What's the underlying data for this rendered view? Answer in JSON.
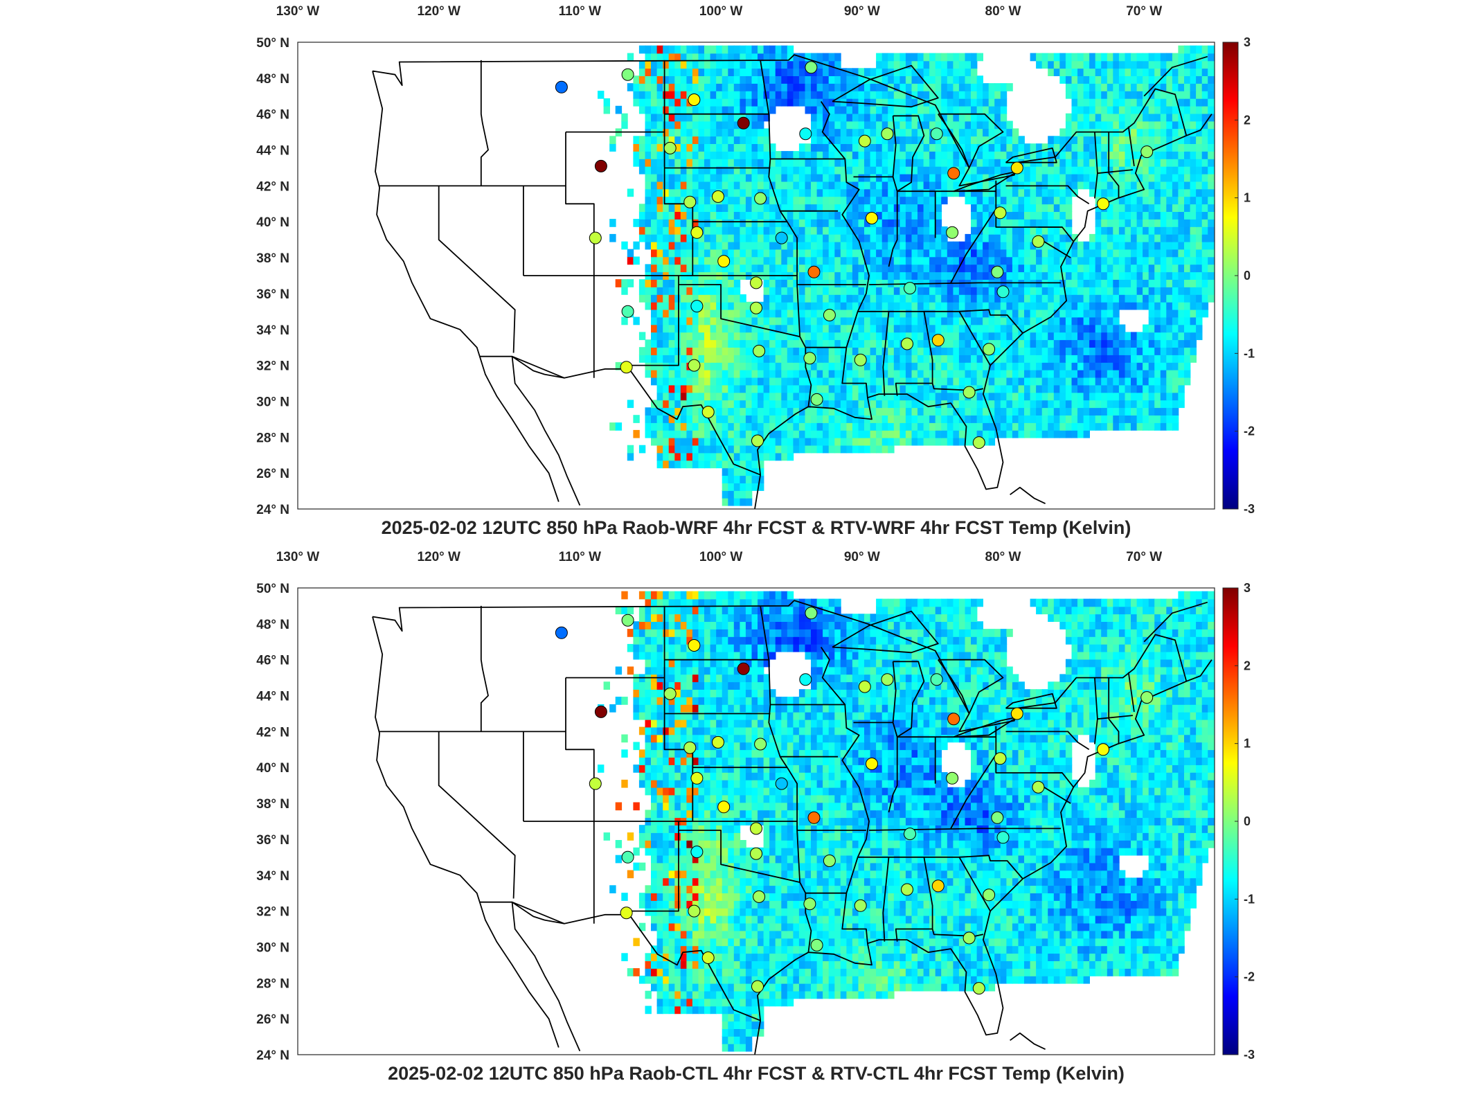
{
  "panels": [
    {
      "title": "2025-02-02 12UTC 850 hPa Raob-WRF 4hr FCST & RTV-WRF 4hr FCST Temp (Kelvin)",
      "lon_ticks": [
        "130° W",
        "120° W",
        "110° W",
        "100° W",
        "90° W",
        "80° W",
        "70° W"
      ],
      "lat_ticks": [
        "50° N",
        "48° N",
        "46° N",
        "44° N",
        "42° N",
        "40° N",
        "38° N",
        "36° N",
        "34° N",
        "32° N",
        "30° N",
        "28° N",
        "26° N",
        "24° N"
      ],
      "colorbar_ticks": [
        "3",
        "2",
        "1",
        "0",
        "-1",
        "-2",
        "-3"
      ]
    },
    {
      "title": "2025-02-02 12UTC 850 hPa Raob-CTL 4hr FCST & RTV-CTL 4hr FCST Temp (Kelvin)",
      "lon_ticks": [
        "130° W",
        "120° W",
        "110° W",
        "100° W",
        "90° W",
        "80° W",
        "70° W"
      ],
      "lat_ticks": [
        "50° N",
        "48° N",
        "46° N",
        "44° N",
        "42° N",
        "40° N",
        "38° N",
        "36° N",
        "34° N",
        "32° N",
        "30° N",
        "28° N",
        "26° N",
        "24° N"
      ],
      "colorbar_ticks": [
        "3",
        "2",
        "1",
        "0",
        "-1",
        "-2",
        "-3"
      ]
    }
  ],
  "chart_data": {
    "type": "scatter",
    "colormap": "jet",
    "color_range": [
      -3,
      3
    ],
    "lon_range": [
      -130,
      -65
    ],
    "lat_range": [
      24,
      50
    ],
    "stations": [
      {
        "lon": -111.3,
        "lat": 47.5,
        "v_wrf": -1.6,
        "v_ctl": -1.6
      },
      {
        "lon": -106.6,
        "lat": 48.2,
        "v_wrf": 0.0,
        "v_ctl": 0.0
      },
      {
        "lon": -101.9,
        "lat": 46.8,
        "v_wrf": 0.8,
        "v_ctl": 0.8
      },
      {
        "lon": -98.4,
        "lat": 45.5,
        "v_wrf": 3.0,
        "v_ctl": 2.9
      },
      {
        "lon": -93.6,
        "lat": 48.6,
        "v_wrf": 0.0,
        "v_ctl": 0.0
      },
      {
        "lon": -94.0,
        "lat": 44.9,
        "v_wrf": -0.7,
        "v_ctl": -0.7
      },
      {
        "lon": -108.5,
        "lat": 43.1,
        "v_wrf": 3.0,
        "v_ctl": 3.0
      },
      {
        "lon": -103.6,
        "lat": 44.1,
        "v_wrf": 0.2,
        "v_ctl": 0.2
      },
      {
        "lon": -102.2,
        "lat": 41.1,
        "v_wrf": 0.3,
        "v_ctl": 0.3
      },
      {
        "lon": -100.2,
        "lat": 41.4,
        "v_wrf": 0.5,
        "v_ctl": 0.5
      },
      {
        "lon": -97.2,
        "lat": 41.3,
        "v_wrf": 0.1,
        "v_ctl": 0.1
      },
      {
        "lon": -108.9,
        "lat": 39.1,
        "v_wrf": 0.4,
        "v_ctl": 0.4
      },
      {
        "lon": -101.7,
        "lat": 39.4,
        "v_wrf": 0.6,
        "v_ctl": 0.6
      },
      {
        "lon": -99.8,
        "lat": 37.8,
        "v_wrf": 0.8,
        "v_ctl": 0.8
      },
      {
        "lon": -95.7,
        "lat": 39.1,
        "v_wrf": -1.1,
        "v_ctl": -1.1
      },
      {
        "lon": -93.4,
        "lat": 37.2,
        "v_wrf": 1.6,
        "v_ctl": 1.6
      },
      {
        "lon": -97.5,
        "lat": 36.6,
        "v_wrf": 0.4,
        "v_ctl": 0.4
      },
      {
        "lon": -101.7,
        "lat": 35.3,
        "v_wrf": -0.7,
        "v_ctl": -0.7
      },
      {
        "lon": -106.6,
        "lat": 35.0,
        "v_wrf": -0.3,
        "v_ctl": -0.3
      },
      {
        "lon": -97.5,
        "lat": 35.2,
        "v_wrf": 0.3,
        "v_ctl": 0.3
      },
      {
        "lon": -92.3,
        "lat": 34.8,
        "v_wrf": 0.1,
        "v_ctl": 0.1
      },
      {
        "lon": -106.7,
        "lat": 31.9,
        "v_wrf": 0.6,
        "v_ctl": 0.6
      },
      {
        "lon": -101.9,
        "lat": 32.0,
        "v_wrf": 0.3,
        "v_ctl": 0.3
      },
      {
        "lon": -97.3,
        "lat": 32.8,
        "v_wrf": 0.2,
        "v_ctl": 0.2
      },
      {
        "lon": -93.7,
        "lat": 32.4,
        "v_wrf": 0.1,
        "v_ctl": 0.1
      },
      {
        "lon": -90.1,
        "lat": 32.3,
        "v_wrf": 0.2,
        "v_ctl": 0.2
      },
      {
        "lon": -86.8,
        "lat": 33.2,
        "v_wrf": 0.3,
        "v_ctl": 0.3
      },
      {
        "lon": -84.6,
        "lat": 33.4,
        "v_wrf": 1.0,
        "v_ctl": 1.0
      },
      {
        "lon": -81.0,
        "lat": 32.9,
        "v_wrf": 0.1,
        "v_ctl": 0.1
      },
      {
        "lon": -97.4,
        "lat": 27.8,
        "v_wrf": 0.3,
        "v_ctl": 0.3
      },
      {
        "lon": -93.2,
        "lat": 30.1,
        "v_wrf": 0.0,
        "v_ctl": 0.0
      },
      {
        "lon": -82.4,
        "lat": 30.5,
        "v_wrf": 0.2,
        "v_ctl": 0.2
      },
      {
        "lon": -81.7,
        "lat": 27.7,
        "v_wrf": 0.3,
        "v_ctl": 0.3
      },
      {
        "lon": -100.9,
        "lat": 29.4,
        "v_wrf": 0.5,
        "v_ctl": 0.5
      },
      {
        "lon": -89.8,
        "lat": 44.5,
        "v_wrf": 0.4,
        "v_ctl": 0.4
      },
      {
        "lon": -88.2,
        "lat": 44.9,
        "v_wrf": 0.2,
        "v_ctl": 0.2
      },
      {
        "lon": -84.7,
        "lat": 44.9,
        "v_wrf": -0.3,
        "v_ctl": -0.3
      },
      {
        "lon": -83.5,
        "lat": 42.7,
        "v_wrf": 1.6,
        "v_ctl": 1.6
      },
      {
        "lon": -89.3,
        "lat": 40.2,
        "v_wrf": 0.8,
        "v_ctl": 0.8
      },
      {
        "lon": -86.6,
        "lat": 36.3,
        "v_wrf": -0.3,
        "v_ctl": -0.3
      },
      {
        "lon": -83.6,
        "lat": 39.4,
        "v_wrf": 0.1,
        "v_ctl": 0.1
      },
      {
        "lon": -80.2,
        "lat": 40.5,
        "v_wrf": 0.4,
        "v_ctl": 0.4
      },
      {
        "lon": -79.0,
        "lat": 43.0,
        "v_wrf": 0.9,
        "v_ctl": 0.9
      },
      {
        "lon": -80.4,
        "lat": 37.2,
        "v_wrf": 0.0,
        "v_ctl": 0.0
      },
      {
        "lon": -77.5,
        "lat": 38.9,
        "v_wrf": 0.3,
        "v_ctl": 0.3
      },
      {
        "lon": -80.0,
        "lat": 36.1,
        "v_wrf": -0.5,
        "v_ctl": -0.5
      },
      {
        "lon": -72.9,
        "lat": 41.0,
        "v_wrf": 0.7,
        "v_ctl": 0.7
      },
      {
        "lon": -69.8,
        "lat": 43.9,
        "v_wrf": 0.1,
        "v_ctl": 0.1
      }
    ]
  }
}
